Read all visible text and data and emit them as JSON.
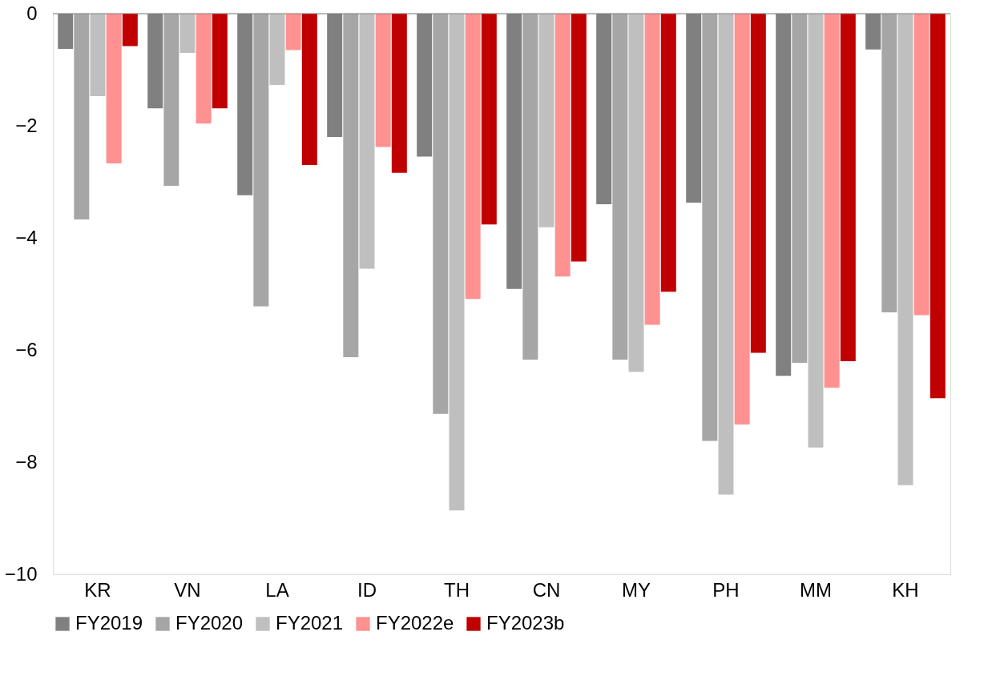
{
  "chart_data": {
    "type": "bar",
    "categories": [
      "KR",
      "VN",
      "LA",
      "ID",
      "TH",
      "CN",
      "MY",
      "PH",
      "MM",
      "KH"
    ],
    "series": [
      {
        "name": "FY2019",
        "color": "#808080",
        "values": [
          -0.63,
          -1.69,
          -3.24,
          -2.2,
          -2.55,
          -4.91,
          -3.4,
          -3.37,
          -6.46,
          -0.64
        ]
      },
      {
        "name": "FY2020",
        "color": "#a6a6a6",
        "values": [
          -3.67,
          -3.07,
          -5.22,
          -6.13,
          -7.14,
          -6.17,
          -6.17,
          -7.62,
          -6.23,
          -5.33
        ]
      },
      {
        "name": "FY2021",
        "color": "#bfbfbf",
        "values": [
          -1.47,
          -0.7,
          -1.27,
          -4.55,
          -8.86,
          -3.81,
          -6.39,
          -8.58,
          -7.74,
          -8.41
        ]
      },
      {
        "name": "FY2022e",
        "color": "#ff9191",
        "values": [
          -2.67,
          -1.96,
          -0.65,
          -2.38,
          -5.09,
          -4.69,
          -5.55,
          -7.33,
          -6.67,
          -5.38
        ]
      },
      {
        "name": "FY2023b",
        "color": "#c00000",
        "values": [
          -0.58,
          -1.69,
          -2.7,
          -2.84,
          -3.76,
          -4.42,
          -4.96,
          -6.05,
          -6.2,
          -6.86
        ]
      }
    ],
    "ylim": [
      -10,
      0
    ],
    "yticks": [
      -10,
      -8,
      -6,
      -4,
      -2,
      0
    ],
    "grid": false,
    "legend": "bottom"
  }
}
